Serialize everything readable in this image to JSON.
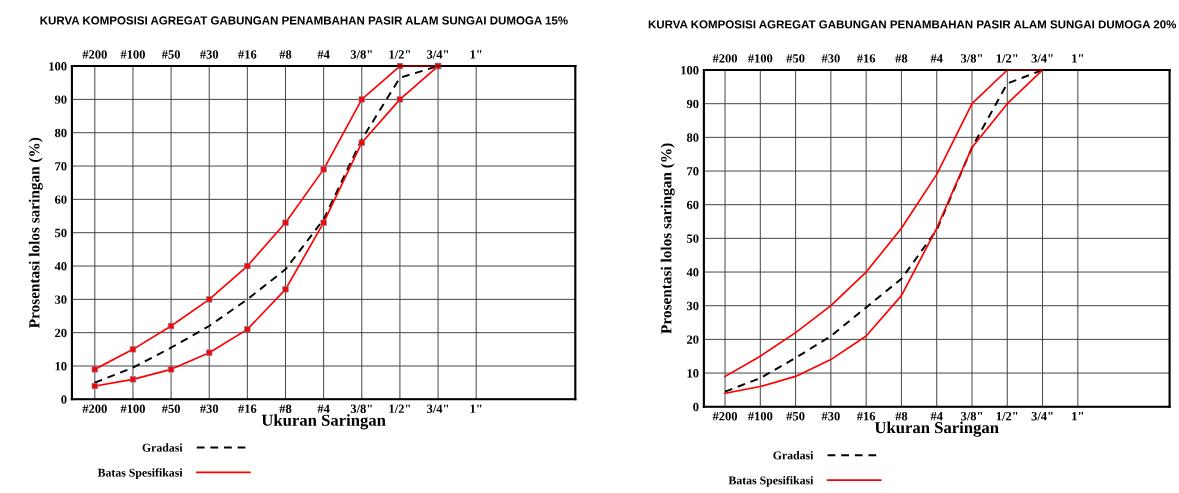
{
  "chart_data": [
    {
      "type": "line",
      "title": "KURVA KOMPOSISI AGREGAT GABUNGAN PENAMBAHAN PASIR ALAM SUNGAI DUMOGA 15%",
      "xlabel": "Ukuran Saringan",
      "ylabel": "Prosentasi lolos saringan (%)",
      "grid": true,
      "legend": "bottom",
      "categories": [
        "#200",
        "#100",
        "#50",
        "#30",
        "#16",
        "#8",
        "#4",
        "3/8\"",
        "1/2\"",
        "3/4\"",
        "1\""
      ],
      "ylim": [
        0,
        100
      ],
      "yticks": [
        0,
        10,
        20,
        30,
        40,
        50,
        60,
        70,
        80,
        90,
        100
      ],
      "series": [
        {
          "name": "Gradasi",
          "color": "#000000",
          "line_style": "dashed",
          "marker": "none",
          "values": [
            5,
            9.5,
            15.5,
            22,
            30,
            39,
            54,
            78,
            96.5,
            100,
            null
          ]
        },
        {
          "name": "Batas Spesifikasi",
          "color": "#ff0000",
          "line_style": "solid",
          "marker": "square",
          "values": [
            9,
            15,
            22,
            30,
            40,
            53,
            69,
            90,
            100,
            100,
            null
          ]
        },
        {
          "color": "#ff0000",
          "line_style": "solid",
          "marker": "square",
          "values": [
            4,
            6,
            9,
            14,
            21,
            33,
            53,
            77,
            90,
            100,
            null
          ]
        }
      ]
    },
    {
      "type": "line",
      "title": "KURVA KOMPOSISI AGREGAT GABUNGAN PENAMBAHAN PASIR ALAM SUNGAI DUMOGA 20%",
      "xlabel": "Ukuran Saringan",
      "ylabel": "Prosentasi lolos saringan (%)",
      "grid": true,
      "legend": "bottom",
      "categories": [
        "#200",
        "#100",
        "#50",
        "#30",
        "#16",
        "#8",
        "#4",
        "3/8\"",
        "1/2\"",
        "3/4\"",
        "1\""
      ],
      "ylim": [
        0,
        100
      ],
      "yticks": [
        0,
        10,
        20,
        30,
        40,
        50,
        60,
        70,
        80,
        90,
        100
      ],
      "series": [
        {
          "name": "Gradasi",
          "color": "#000000",
          "line_style": "dashed",
          "marker": "none",
          "values": [
            4.5,
            8.5,
            14.5,
            21,
            29.5,
            38,
            52.5,
            77,
            96,
            100,
            100
          ]
        },
        {
          "name": "Batas Spesifikasi",
          "color": "#ff0000",
          "line_style": "solid",
          "marker": "none",
          "values": [
            9,
            15,
            22,
            30,
            40,
            53,
            69,
            90,
            100,
            100,
            null
          ]
        },
        {
          "color": "#ff0000",
          "line_style": "solid",
          "marker": "none",
          "values": [
            4,
            6,
            9,
            14,
            21,
            33,
            53,
            77,
            90,
            100,
            null
          ]
        }
      ]
    }
  ]
}
